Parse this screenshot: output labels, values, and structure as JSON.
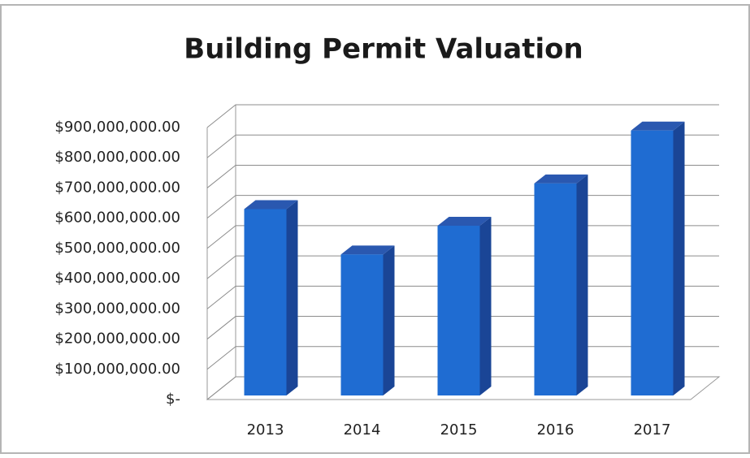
{
  "chart_data": {
    "type": "bar3d",
    "title": "Building Permit Valuation",
    "categories": [
      "2013",
      "2014",
      "2015",
      "2016",
      "2017"
    ],
    "values": [
      630000000,
      480000000,
      575000000,
      715000000,
      890000000
    ],
    "color": "#1f6cd2",
    "ylim": [
      0,
      900000000
    ],
    "yticks": [
      {
        "value": 0,
        "label": "$-"
      },
      {
        "value": 100000000,
        "label": "$100,000,000.00"
      },
      {
        "value": 200000000,
        "label": "$200,000,000.00"
      },
      {
        "value": 300000000,
        "label": "$300,000,000.00"
      },
      {
        "value": 400000000,
        "label": "$400,000,000.00"
      },
      {
        "value": 500000000,
        "label": "$500,000,000.00"
      },
      {
        "value": 600000000,
        "label": "$600,000,000.00"
      },
      {
        "value": 700000000,
        "label": "$700,000,000.00"
      },
      {
        "value": 800000000,
        "label": "$800,000,000.00"
      },
      {
        "value": 900000000,
        "label": "$900,000,000.00"
      }
    ],
    "grid": true
  }
}
